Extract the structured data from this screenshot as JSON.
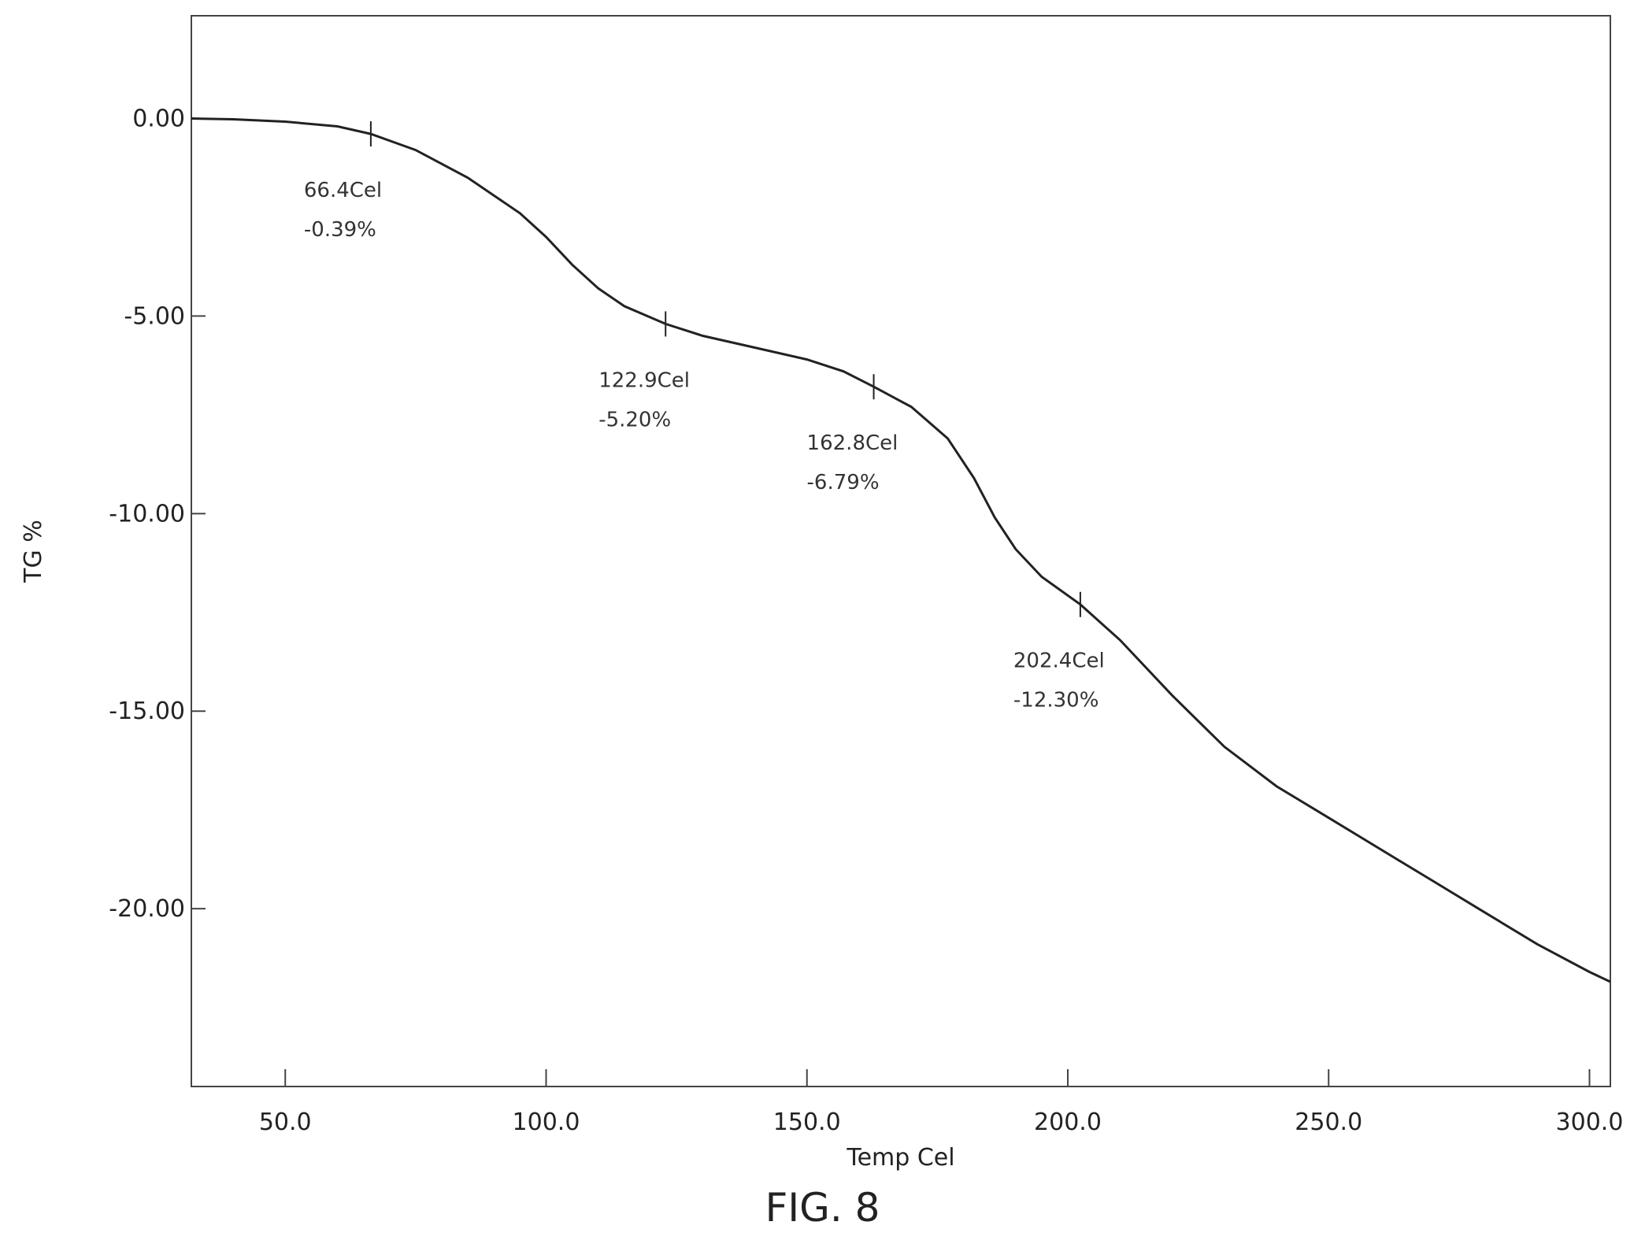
{
  "figure_caption": "FIG. 8",
  "chart_data": {
    "type": "line",
    "xlabel": "Temp Cel",
    "ylabel": "TG %",
    "xlim": [
      32,
      304
    ],
    "ylim": [
      -24.5,
      2.6
    ],
    "x_ticks": [
      50.0,
      100.0,
      150.0,
      200.0,
      250.0,
      300.0
    ],
    "x_tick_labels": [
      "50.0",
      "100.0",
      "150.0",
      "200.0",
      "250.0",
      "300.0"
    ],
    "y_ticks": [
      0.0,
      -5.0,
      -10.0,
      -15.0,
      -20.0
    ],
    "y_tick_labels": [
      "0.00",
      "-5.00",
      "-10.00",
      "-15.00",
      "-20.00"
    ],
    "grid": false,
    "series": [
      {
        "x": [
          32,
          40,
          50,
          60,
          66.4,
          75,
          85,
          95,
          100,
          105,
          110,
          115,
          122.9,
          130,
          140,
          150,
          157,
          162.8,
          170,
          177,
          182,
          186,
          190,
          195,
          202.4,
          210,
          220,
          230,
          240,
          250,
          260,
          270,
          280,
          290,
          300,
          304
        ],
        "y": [
          0.0,
          -0.02,
          -0.08,
          -0.2,
          -0.39,
          -0.8,
          -1.5,
          -2.4,
          -3.0,
          -3.7,
          -4.3,
          -4.75,
          -5.2,
          -5.5,
          -5.8,
          -6.1,
          -6.4,
          -6.79,
          -7.3,
          -8.1,
          -9.1,
          -10.1,
          -10.9,
          -11.6,
          -12.3,
          -13.2,
          -14.6,
          -15.9,
          -16.9,
          -17.7,
          -18.5,
          -19.3,
          -20.1,
          -20.9,
          -21.6,
          -21.85
        ]
      }
    ],
    "annotations": [
      {
        "x": 66.4,
        "y": -0.39,
        "line1": "66.4Cel",
        "line2": "-0.39%"
      },
      {
        "x": 122.9,
        "y": -5.2,
        "line1": "122.9Cel",
        "line2": "-5.20%"
      },
      {
        "x": 162.8,
        "y": -6.79,
        "line1": "162.8Cel",
        "line2": "-6.79%"
      },
      {
        "x": 202.4,
        "y": -12.3,
        "line1": "202.4Cel",
        "line2": "-12.30%"
      }
    ]
  }
}
